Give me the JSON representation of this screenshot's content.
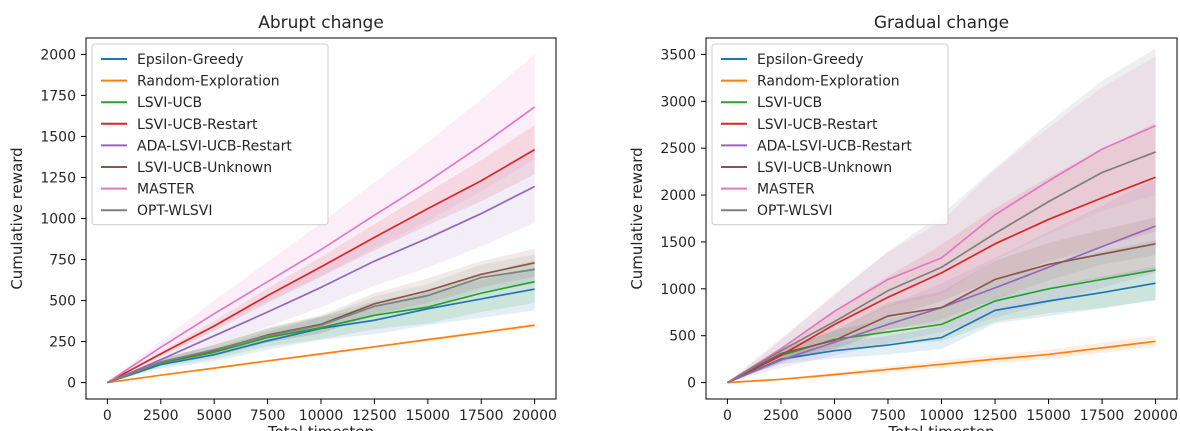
{
  "chart_data": [
    {
      "type": "line",
      "title": "Abrupt change",
      "xlabel": "Total timestep",
      "ylabel": "Cumulative reward",
      "xlim": [
        0,
        20000
      ],
      "ylim": [
        0,
        2000
      ],
      "xticks": [
        0,
        2500,
        5000,
        7500,
        10000,
        12500,
        15000,
        17500,
        20000
      ],
      "yticks": [
        0,
        250,
        500,
        750,
        1000,
        1250,
        1500,
        1750,
        2000
      ],
      "grid": false,
      "legend_position": "top-left",
      "x": [
        0,
        2500,
        5000,
        7500,
        10000,
        12500,
        15000,
        17500,
        20000
      ],
      "series": [
        {
          "name": "Epsilon-Greedy",
          "color": "#1f77b4",
          "values": [
            0,
            110,
            170,
            255,
            330,
            380,
            450,
            510,
            570
          ],
          "band": [
            0,
            25,
            40,
            55,
            70,
            85,
            100,
            115,
            130
          ]
        },
        {
          "name": "Random-Exploration",
          "color": "#ff7f0e",
          "values": [
            0,
            45,
            88,
            132,
            175,
            218,
            262,
            305,
            350
          ],
          "band": [
            0,
            3,
            5,
            6,
            7,
            8,
            9,
            10,
            12
          ]
        },
        {
          "name": "LSVI-UCB",
          "color": "#2ca02c",
          "values": [
            0,
            120,
            185,
            275,
            335,
            410,
            460,
            545,
            615
          ],
          "band": [
            0,
            25,
            40,
            55,
            70,
            85,
            100,
            115,
            130
          ]
        },
        {
          "name": "LSVI-UCB-Restart",
          "color": "#d62728",
          "values": [
            0,
            175,
            345,
            530,
            705,
            885,
            1060,
            1230,
            1420
          ],
          "band": [
            0,
            15,
            30,
            45,
            60,
            80,
            100,
            125,
            150
          ]
        },
        {
          "name": "ADA-LSVI-UCB-Restart",
          "color": "#9467bd",
          "values": [
            0,
            140,
            285,
            430,
            580,
            740,
            880,
            1030,
            1195
          ],
          "band": [
            0,
            30,
            60,
            90,
            120,
            150,
            180,
            200,
            220
          ]
        },
        {
          "name": "LSVI-UCB-Unknown",
          "color": "#8c564b",
          "values": [
            0,
            125,
            195,
            290,
            355,
            480,
            560,
            660,
            730
          ],
          "band": [
            0,
            20,
            35,
            45,
            55,
            65,
            75,
            80,
            85
          ]
        },
        {
          "name": "MASTER",
          "color": "#e377c2",
          "values": [
            0,
            215,
            420,
            615,
            810,
            1020,
            1225,
            1445,
            1680
          ],
          "band": [
            0,
            40,
            80,
            120,
            160,
            200,
            240,
            280,
            320
          ]
        },
        {
          "name": "OPT-WLSVI",
          "color": "#7f7f7f",
          "values": [
            0,
            125,
            200,
            285,
            350,
            465,
            530,
            640,
            690
          ],
          "band": [
            0,
            20,
            30,
            40,
            50,
            60,
            70,
            80,
            90
          ]
        }
      ]
    },
    {
      "type": "line",
      "title": "Gradual change",
      "xlabel": "Total timestep",
      "ylabel": "Cumulative reward",
      "xlim": [
        0,
        20000
      ],
      "ylim": [
        0,
        3500
      ],
      "xticks": [
        0,
        2500,
        5000,
        7500,
        10000,
        12500,
        15000,
        17500,
        20000
      ],
      "yticks": [
        0,
        500,
        1000,
        1500,
        2000,
        2500,
        3000,
        3500
      ],
      "grid": false,
      "legend_position": "top-left",
      "x": [
        0,
        2500,
        5000,
        7500,
        10000,
        12500,
        15000,
        17500,
        20000
      ],
      "series": [
        {
          "name": "Epsilon-Greedy",
          "color": "#1f77b4",
          "values": [
            0,
            250,
            340,
            400,
            480,
            770,
            870,
            960,
            1060
          ],
          "band": [
            0,
            50,
            80,
            100,
            120,
            140,
            160,
            170,
            180
          ]
        },
        {
          "name": "Random-Exploration",
          "color": "#ff7f0e",
          "values": [
            0,
            35,
            85,
            140,
            195,
            250,
            300,
            370,
            440
          ],
          "band": [
            0,
            10,
            20,
            30,
            40,
            45,
            50,
            55,
            60
          ]
        },
        {
          "name": "LSVI-UCB",
          "color": "#2ca02c",
          "values": [
            0,
            290,
            460,
            540,
            620,
            870,
            1000,
            1100,
            1200
          ],
          "band": [
            0,
            60,
            100,
            140,
            180,
            220,
            260,
            300,
            320
          ]
        },
        {
          "name": "LSVI-UCB-Restart",
          "color": "#d62728",
          "values": [
            0,
            290,
            620,
            910,
            1170,
            1480,
            1740,
            1970,
            2190
          ],
          "band": [
            0,
            80,
            150,
            220,
            300,
            380,
            450,
            520,
            580
          ]
        },
        {
          "name": "ADA-LSVI-UCB-Restart",
          "color": "#9467bd",
          "values": [
            0,
            240,
            430,
            620,
            800,
            1010,
            1230,
            1450,
            1670
          ],
          "band": [
            0,
            80,
            140,
            200,
            260,
            320,
            380,
            440,
            500
          ]
        },
        {
          "name": "LSVI-UCB-Unknown",
          "color": "#8c564b",
          "values": [
            0,
            310,
            450,
            710,
            800,
            1100,
            1260,
            1370,
            1480
          ],
          "band": [
            0,
            60,
            100,
            140,
            170,
            200,
            230,
            260,
            280
          ]
        },
        {
          "name": "MASTER",
          "color": "#e377c2",
          "values": [
            0,
            360,
            760,
            1100,
            1330,
            1790,
            2150,
            2490,
            2740
          ],
          "band": [
            0,
            90,
            190,
            290,
            390,
            480,
            570,
            660,
            740
          ]
        },
        {
          "name": "OPT-WLSVI",
          "color": "#7f7f7f",
          "values": [
            0,
            340,
            650,
            980,
            1230,
            1590,
            1930,
            2240,
            2460
          ],
          "band": [
            0,
            130,
            280,
            420,
            560,
            700,
            840,
            980,
            1100
          ]
        }
      ]
    }
  ]
}
